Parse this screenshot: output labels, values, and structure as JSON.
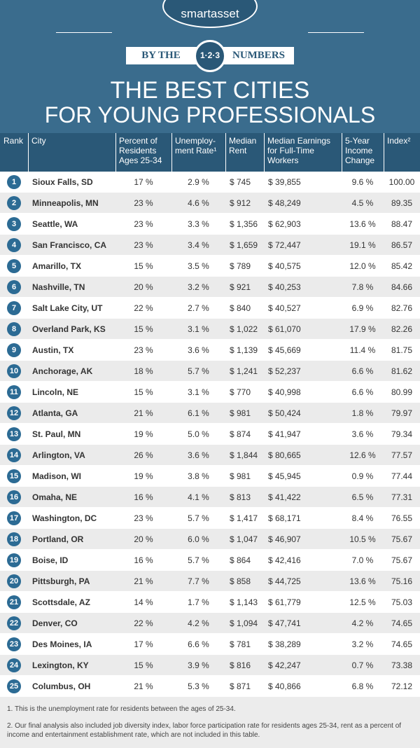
{
  "header": {
    "logo": "smartasset",
    "badge_left": "BY THE",
    "badge_center": "1·2·3",
    "badge_right": "NUMBERS",
    "title_line1": "THE BEST CITIES",
    "title_line2": "FOR YOUNG PROFESSIONALS"
  },
  "table": {
    "columns": [
      "Rank",
      "City",
      "Percent of Residents Ages 25-34",
      "Unemploy-ment Rate¹",
      "Median Rent",
      "Median Earnings for Full-Time Workers",
      "5-Year Income Change",
      "Index²"
    ],
    "rows": [
      [
        "1",
        "Sioux Falls, SD",
        "17 %",
        "2.9 %",
        "$ 745",
        "$ 39,855",
        "9.6 %",
        "100.00"
      ],
      [
        "2",
        "Minneapolis, MN",
        "23 %",
        "4.6 %",
        "$ 912",
        "$ 48,249",
        "4.5 %",
        "89.35"
      ],
      [
        "3",
        "Seattle, WA",
        "23 %",
        "3.3 %",
        "$ 1,356",
        "$ 62,903",
        "13.6 %",
        "88.47"
      ],
      [
        "4",
        "San Francisco, CA",
        "23 %",
        "3.4 %",
        "$ 1,659",
        "$ 72,447",
        "19.1 %",
        "86.57"
      ],
      [
        "5",
        "Amarillo, TX",
        "15 %",
        "3.5 %",
        "$ 789",
        "$ 40,575",
        "12.0 %",
        "85.42"
      ],
      [
        "6",
        "Nashville, TN",
        "20 %",
        "3.2 %",
        "$ 921",
        "$ 40,253",
        "7.8 %",
        "84.66"
      ],
      [
        "7",
        "Salt Lake City, UT",
        "22 %",
        "2.7 %",
        "$ 840",
        "$ 40,527",
        "6.9 %",
        "82.76"
      ],
      [
        "8",
        "Overland Park, KS",
        "15 %",
        "3.1 %",
        "$ 1,022",
        "$ 61,070",
        "17.9 %",
        "82.26"
      ],
      [
        "9",
        "Austin, TX",
        "23 %",
        "3.6 %",
        "$ 1,139",
        "$ 45,669",
        "11.4 %",
        "81.75"
      ],
      [
        "10",
        "Anchorage, AK",
        "18 %",
        "5.7 %",
        "$ 1,241",
        "$ 52,237",
        "6.6 %",
        "81.62"
      ],
      [
        "11",
        "Lincoln, NE",
        "15 %",
        "3.1 %",
        "$ 770",
        "$ 40,998",
        "6.6 %",
        "80.99"
      ],
      [
        "12",
        "Atlanta, GA",
        "21 %",
        "6.1 %",
        "$ 981",
        "$ 50,424",
        "1.8 %",
        "79.97"
      ],
      [
        "13",
        "St. Paul, MN",
        "19 %",
        "5.0 %",
        "$ 874",
        "$ 41,947",
        "3.6 %",
        "79.34"
      ],
      [
        "14",
        "Arlington, VA",
        "26 %",
        "3.6 %",
        "$ 1,844",
        "$ 80,665",
        "12.6 %",
        "77.57"
      ],
      [
        "15",
        "Madison, WI",
        "19 %",
        "3.8 %",
        "$ 981",
        "$ 45,945",
        "0.9 %",
        "77.44"
      ],
      [
        "16",
        "Omaha, NE",
        "16 %",
        "4.1 %",
        "$ 813",
        "$ 41,422",
        "6.5 %",
        "77.31"
      ],
      [
        "17",
        "Washington, DC",
        "23 %",
        "5.7 %",
        "$ 1,417",
        "$ 68,171",
        "8.4 %",
        "76.55"
      ],
      [
        "18",
        "Portland, OR",
        "20 %",
        "6.0 %",
        "$ 1,047",
        "$ 46,907",
        "10.5 %",
        "75.67"
      ],
      [
        "19",
        "Boise, ID",
        "16 %",
        "5.7 %",
        "$ 864",
        "$ 42,416",
        "7.0 %",
        "75.67"
      ],
      [
        "20",
        "Pittsburgh, PA",
        "21 %",
        "7.7 %",
        "$ 858",
        "$ 44,725",
        "13.6 %",
        "75.16"
      ],
      [
        "21",
        "Scottsdale, AZ",
        "14 %",
        "1.7 %",
        "$ 1,143",
        "$ 61,779",
        "12.5 %",
        "75.03"
      ],
      [
        "22",
        "Denver, CO",
        "22 %",
        "4.2 %",
        "$ 1,094",
        "$ 47,741",
        "4.2 %",
        "74.65"
      ],
      [
        "23",
        "Des Moines, IA",
        "17 %",
        "6.6 %",
        "$ 781",
        "$ 38,289",
        "3.2 %",
        "74.65"
      ],
      [
        "24",
        "Lexington, KY",
        "15 %",
        "3.9 %",
        "$ 816",
        "$ 42,247",
        "0.7 %",
        "73.38"
      ],
      [
        "25",
        "Columbus, OH",
        "21 %",
        "5.3 %",
        "$ 871",
        "$ 40,866",
        "6.8 %",
        "72.12"
      ]
    ]
  },
  "footnotes": [
    "1.  This is the unemployment rate for residents between the ages of 25-34.",
    "2.  Our final analysis also included job diversity index, labor force participation rate for residents ages 25-34, rent as a percent of income and entertainment establishment rate, which are not included in this table."
  ]
}
